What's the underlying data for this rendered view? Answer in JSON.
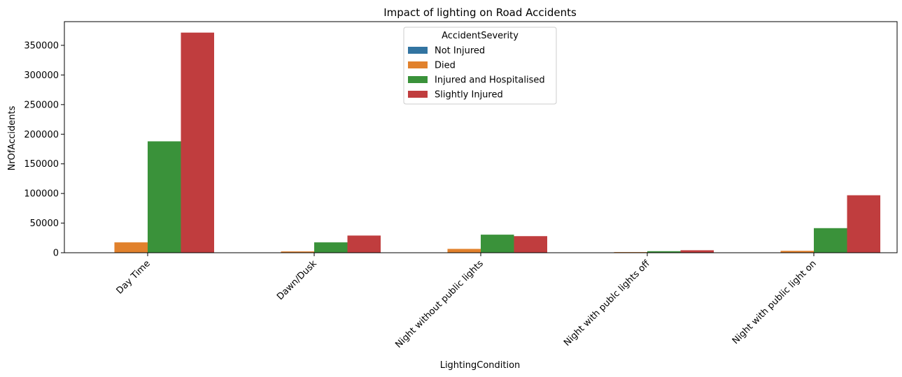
{
  "chart_data": {
    "type": "bar",
    "title": "Impact of lighting on Road Accidents",
    "xlabel": "LightingCondition",
    "ylabel": "NrOfAccidents",
    "categories": [
      "Day Time",
      "Dawn/Dusk",
      "Night without public lights",
      "Night with publc lights off",
      "Night with public light on"
    ],
    "y_ticks": [
      0,
      50000,
      100000,
      150000,
      200000,
      250000,
      300000,
      350000
    ],
    "ylim": [
      0,
      390000
    ],
    "grid": false,
    "legend": {
      "title": "AccidentSeverity",
      "placement": "top-center"
    },
    "series": [
      {
        "name": "Not Injured",
        "color": "#3274a1",
        "values": [
          0,
          0,
          0,
          0,
          0
        ]
      },
      {
        "name": "Died",
        "color": "#e1812c",
        "values": [
          17500,
          2200,
          6500,
          1100,
          3200
        ]
      },
      {
        "name": "Injured and Hospitalised",
        "color": "#3a923a",
        "values": [
          188000,
          17500,
          30500,
          2600,
          41500
        ]
      },
      {
        "name": "Slightly Injured",
        "color": "#c03d3e",
        "values": [
          371500,
          29000,
          28000,
          4200,
          97000
        ]
      }
    ]
  }
}
